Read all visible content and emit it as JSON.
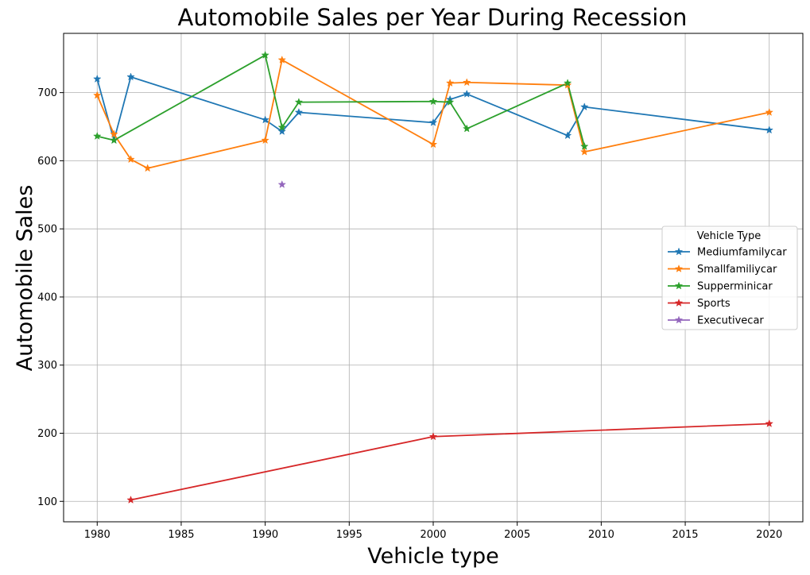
{
  "chart_data": {
    "type": "line",
    "title": "Automobile Sales per Year During Recession",
    "xlabel": "Vehicle type",
    "ylabel": "Automobile Sales",
    "xlim": [
      1978,
      2022
    ],
    "ylim": [
      70,
      787
    ],
    "xticks": [
      1980,
      1985,
      1990,
      1995,
      2000,
      2005,
      2010,
      2015,
      2020
    ],
    "yticks": [
      100,
      200,
      300,
      400,
      500,
      600,
      700
    ],
    "grid": true,
    "legend": {
      "title": "Vehicle Type",
      "position": "center-right"
    },
    "marker": "star",
    "series": [
      {
        "name": "Mediumfamilycar",
        "color": "#1f77b4",
        "x": [
          1980,
          1981,
          1982,
          1990,
          1991,
          1992,
          2000,
          2001,
          2002,
          2008,
          2009,
          2020
        ],
        "y": [
          720,
          630,
          723,
          660,
          643,
          671,
          656,
          690,
          698,
          637,
          679,
          645
        ]
      },
      {
        "name": "Smallfamiliycar",
        "color": "#ff7f0e",
        "x": [
          1980,
          1981,
          1982,
          1983,
          1990,
          1991,
          2000,
          2001,
          2002,
          2008,
          2009,
          2020
        ],
        "y": [
          696,
          639,
          602,
          589,
          630,
          748,
          624,
          714,
          715,
          711,
          613,
          671
        ]
      },
      {
        "name": "Supperminicar",
        "color": "#2ca02c",
        "x": [
          1980,
          1981,
          1990,
          1991,
          1992,
          2000,
          2001,
          2002,
          2008,
          2009
        ],
        "y": [
          636,
          630,
          755,
          649,
          686,
          687,
          686,
          647,
          714,
          621
        ]
      },
      {
        "name": "Sports",
        "color": "#d62728",
        "x": [
          1982,
          2000,
          2020
        ],
        "y": [
          102,
          195,
          214
        ]
      },
      {
        "name": "Executivecar",
        "color": "#9467bd",
        "x": [
          1991
        ],
        "y": [
          565
        ]
      }
    ]
  }
}
